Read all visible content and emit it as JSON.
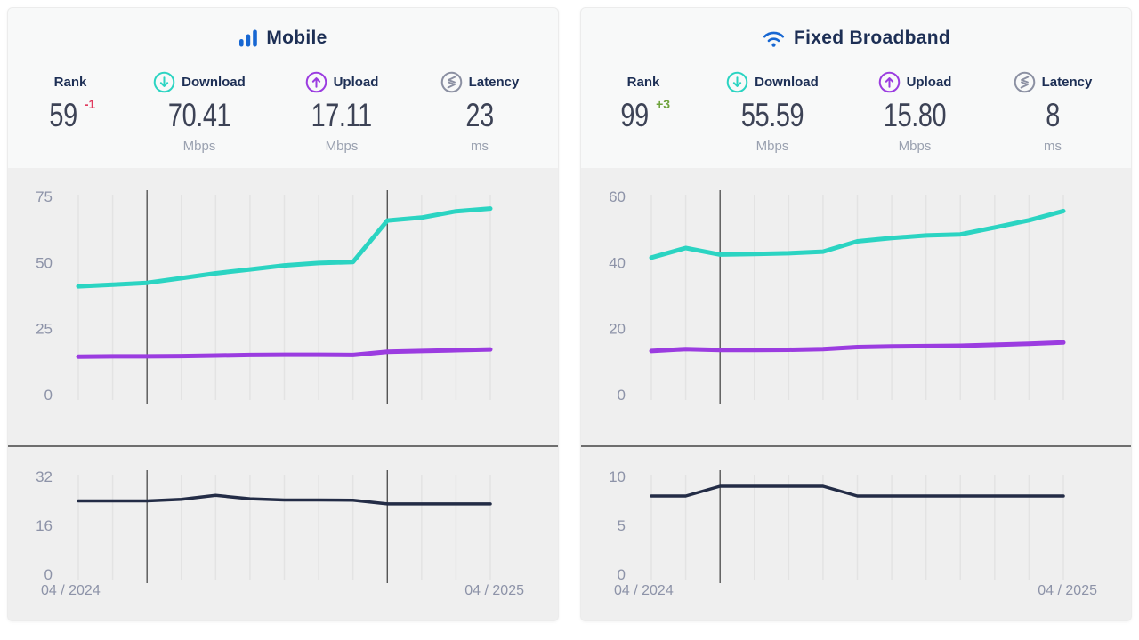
{
  "colors": {
    "download_line": "#2bd4c2",
    "upload_line": "#9b3ce0",
    "latency_line": "#232c46",
    "brand_blue": "#1767d2",
    "grid": "#e3e3e3",
    "annotation": "#3c3c3c",
    "axis_text": "#8d93a8",
    "rank_down": "#e03a5e",
    "rank_up": "#6fa33c"
  },
  "panels": [
    {
      "id": "mobile",
      "title": "Mobile",
      "title_icon": "mobile-signal-icon",
      "stats": [
        {
          "label": "Rank",
          "value": "59",
          "delta": "-1",
          "delta_color": "#e03a5e",
          "unit": ""
        },
        {
          "label": "Download",
          "icon": "download-icon",
          "value": "70.41",
          "unit": "Mbps"
        },
        {
          "label": "Upload",
          "icon": "upload-icon",
          "value": "17.11",
          "unit": "Mbps"
        },
        {
          "label": "Latency",
          "icon": "latency-icon",
          "value": "23",
          "unit": "ms"
        }
      ],
      "x_axis": {
        "start": "04 / 2024",
        "end": "04 / 2025"
      }
    },
    {
      "id": "fixed-broadband",
      "title": "Fixed Broadband",
      "title_icon": "wifi-icon",
      "stats": [
        {
          "label": "Rank",
          "value": "99",
          "delta": "+3",
          "delta_color": "#6fa33c",
          "unit": ""
        },
        {
          "label": "Download",
          "icon": "download-icon",
          "value": "55.59",
          "unit": "Mbps"
        },
        {
          "label": "Upload",
          "icon": "upload-icon",
          "value": "15.80",
          "unit": "Mbps"
        },
        {
          "label": "Latency",
          "icon": "latency-icon",
          "value": "8",
          "unit": "ms"
        }
      ],
      "x_axis": {
        "start": "04 / 2024",
        "end": "04 / 2025"
      }
    }
  ],
  "chart_data": [
    {
      "id": "mobile-speeds",
      "type": "line",
      "title": "Mobile median speeds over time (Mbps)",
      "x": [
        "04/2024",
        "05/2024",
        "06/2024",
        "07/2024",
        "08/2024",
        "09/2024",
        "10/2024",
        "11/2024",
        "12/2024",
        "01/2025",
        "02/2025",
        "03/2025",
        "04/2025"
      ],
      "series": [
        {
          "name": "Download",
          "color": "#2bd4c2",
          "stroke_width": 5,
          "values": [
            41.0,
            41.6,
            42.3,
            44.1,
            45.9,
            47.4,
            48.9,
            49.8,
            50.2,
            65.9,
            67.0,
            69.4,
            70.41
          ]
        },
        {
          "name": "Upload",
          "color": "#9b3ce0",
          "stroke_width": 5,
          "values": [
            14.4,
            14.5,
            14.5,
            14.6,
            14.8,
            15.0,
            15.1,
            15.1,
            15.0,
            16.2,
            16.5,
            16.8,
            17.11
          ]
        }
      ],
      "ylim": [
        0,
        75
      ],
      "yticks": [
        0,
        25,
        50,
        75
      ],
      "annotations": [
        2,
        9
      ],
      "grid": "vertical-monthly",
      "legend": "none"
    },
    {
      "id": "mobile-latency",
      "type": "line",
      "title": "Mobile median latency over time (ms)",
      "x": [
        "04/2024",
        "05/2024",
        "06/2024",
        "07/2024",
        "08/2024",
        "09/2024",
        "10/2024",
        "11/2024",
        "12/2024",
        "01/2025",
        "02/2025",
        "03/2025",
        "04/2025"
      ],
      "series": [
        {
          "name": "Latency",
          "color": "#232c46",
          "stroke_width": 3.5,
          "values": [
            24,
            24,
            24,
            24.5,
            25.8,
            24.7,
            24.3,
            24.3,
            24.2,
            23,
            23,
            23,
            23
          ]
        }
      ],
      "ylim": [
        0,
        32
      ],
      "yticks": [
        0,
        16,
        32
      ],
      "annotations": [
        2,
        9
      ],
      "grid": "vertical-monthly",
      "legend": "none"
    },
    {
      "id": "fixed-speeds",
      "type": "line",
      "title": "Fixed broadband median speeds over time (Mbps)",
      "x": [
        "04/2024",
        "05/2024",
        "06/2024",
        "07/2024",
        "08/2024",
        "09/2024",
        "10/2024",
        "11/2024",
        "12/2024",
        "01/2025",
        "02/2025",
        "03/2025",
        "04/2025"
      ],
      "series": [
        {
          "name": "Download",
          "color": "#2bd4c2",
          "stroke_width": 5,
          "values": [
            41.5,
            44.4,
            42.4,
            42.6,
            42.8,
            43.3,
            46.4,
            47.4,
            48.2,
            48.5,
            50.6,
            52.8,
            55.59
          ]
        },
        {
          "name": "Upload",
          "color": "#9b3ce0",
          "stroke_width": 5,
          "values": [
            13.2,
            13.8,
            13.5,
            13.5,
            13.6,
            13.8,
            14.4,
            14.6,
            14.7,
            14.8,
            15.1,
            15.4,
            15.8
          ]
        }
      ],
      "ylim": [
        0,
        60
      ],
      "yticks": [
        0,
        20,
        40,
        60
      ],
      "annotations": [
        2
      ],
      "grid": "vertical-monthly",
      "legend": "none"
    },
    {
      "id": "fixed-latency",
      "type": "line",
      "title": "Fixed broadband median latency over time (ms)",
      "x": [
        "04/2024",
        "05/2024",
        "06/2024",
        "07/2024",
        "08/2024",
        "09/2024",
        "10/2024",
        "11/2024",
        "12/2024",
        "01/2025",
        "02/2025",
        "03/2025",
        "04/2025"
      ],
      "series": [
        {
          "name": "Latency",
          "color": "#232c46",
          "stroke_width": 3.5,
          "values": [
            8,
            8,
            9,
            9,
            9,
            9,
            8,
            8,
            8,
            8,
            8,
            8,
            8
          ]
        }
      ],
      "ylim": [
        0,
        10
      ],
      "yticks": [
        0,
        5,
        10
      ],
      "annotations": [
        2
      ],
      "grid": "vertical-monthly",
      "legend": "none"
    }
  ]
}
